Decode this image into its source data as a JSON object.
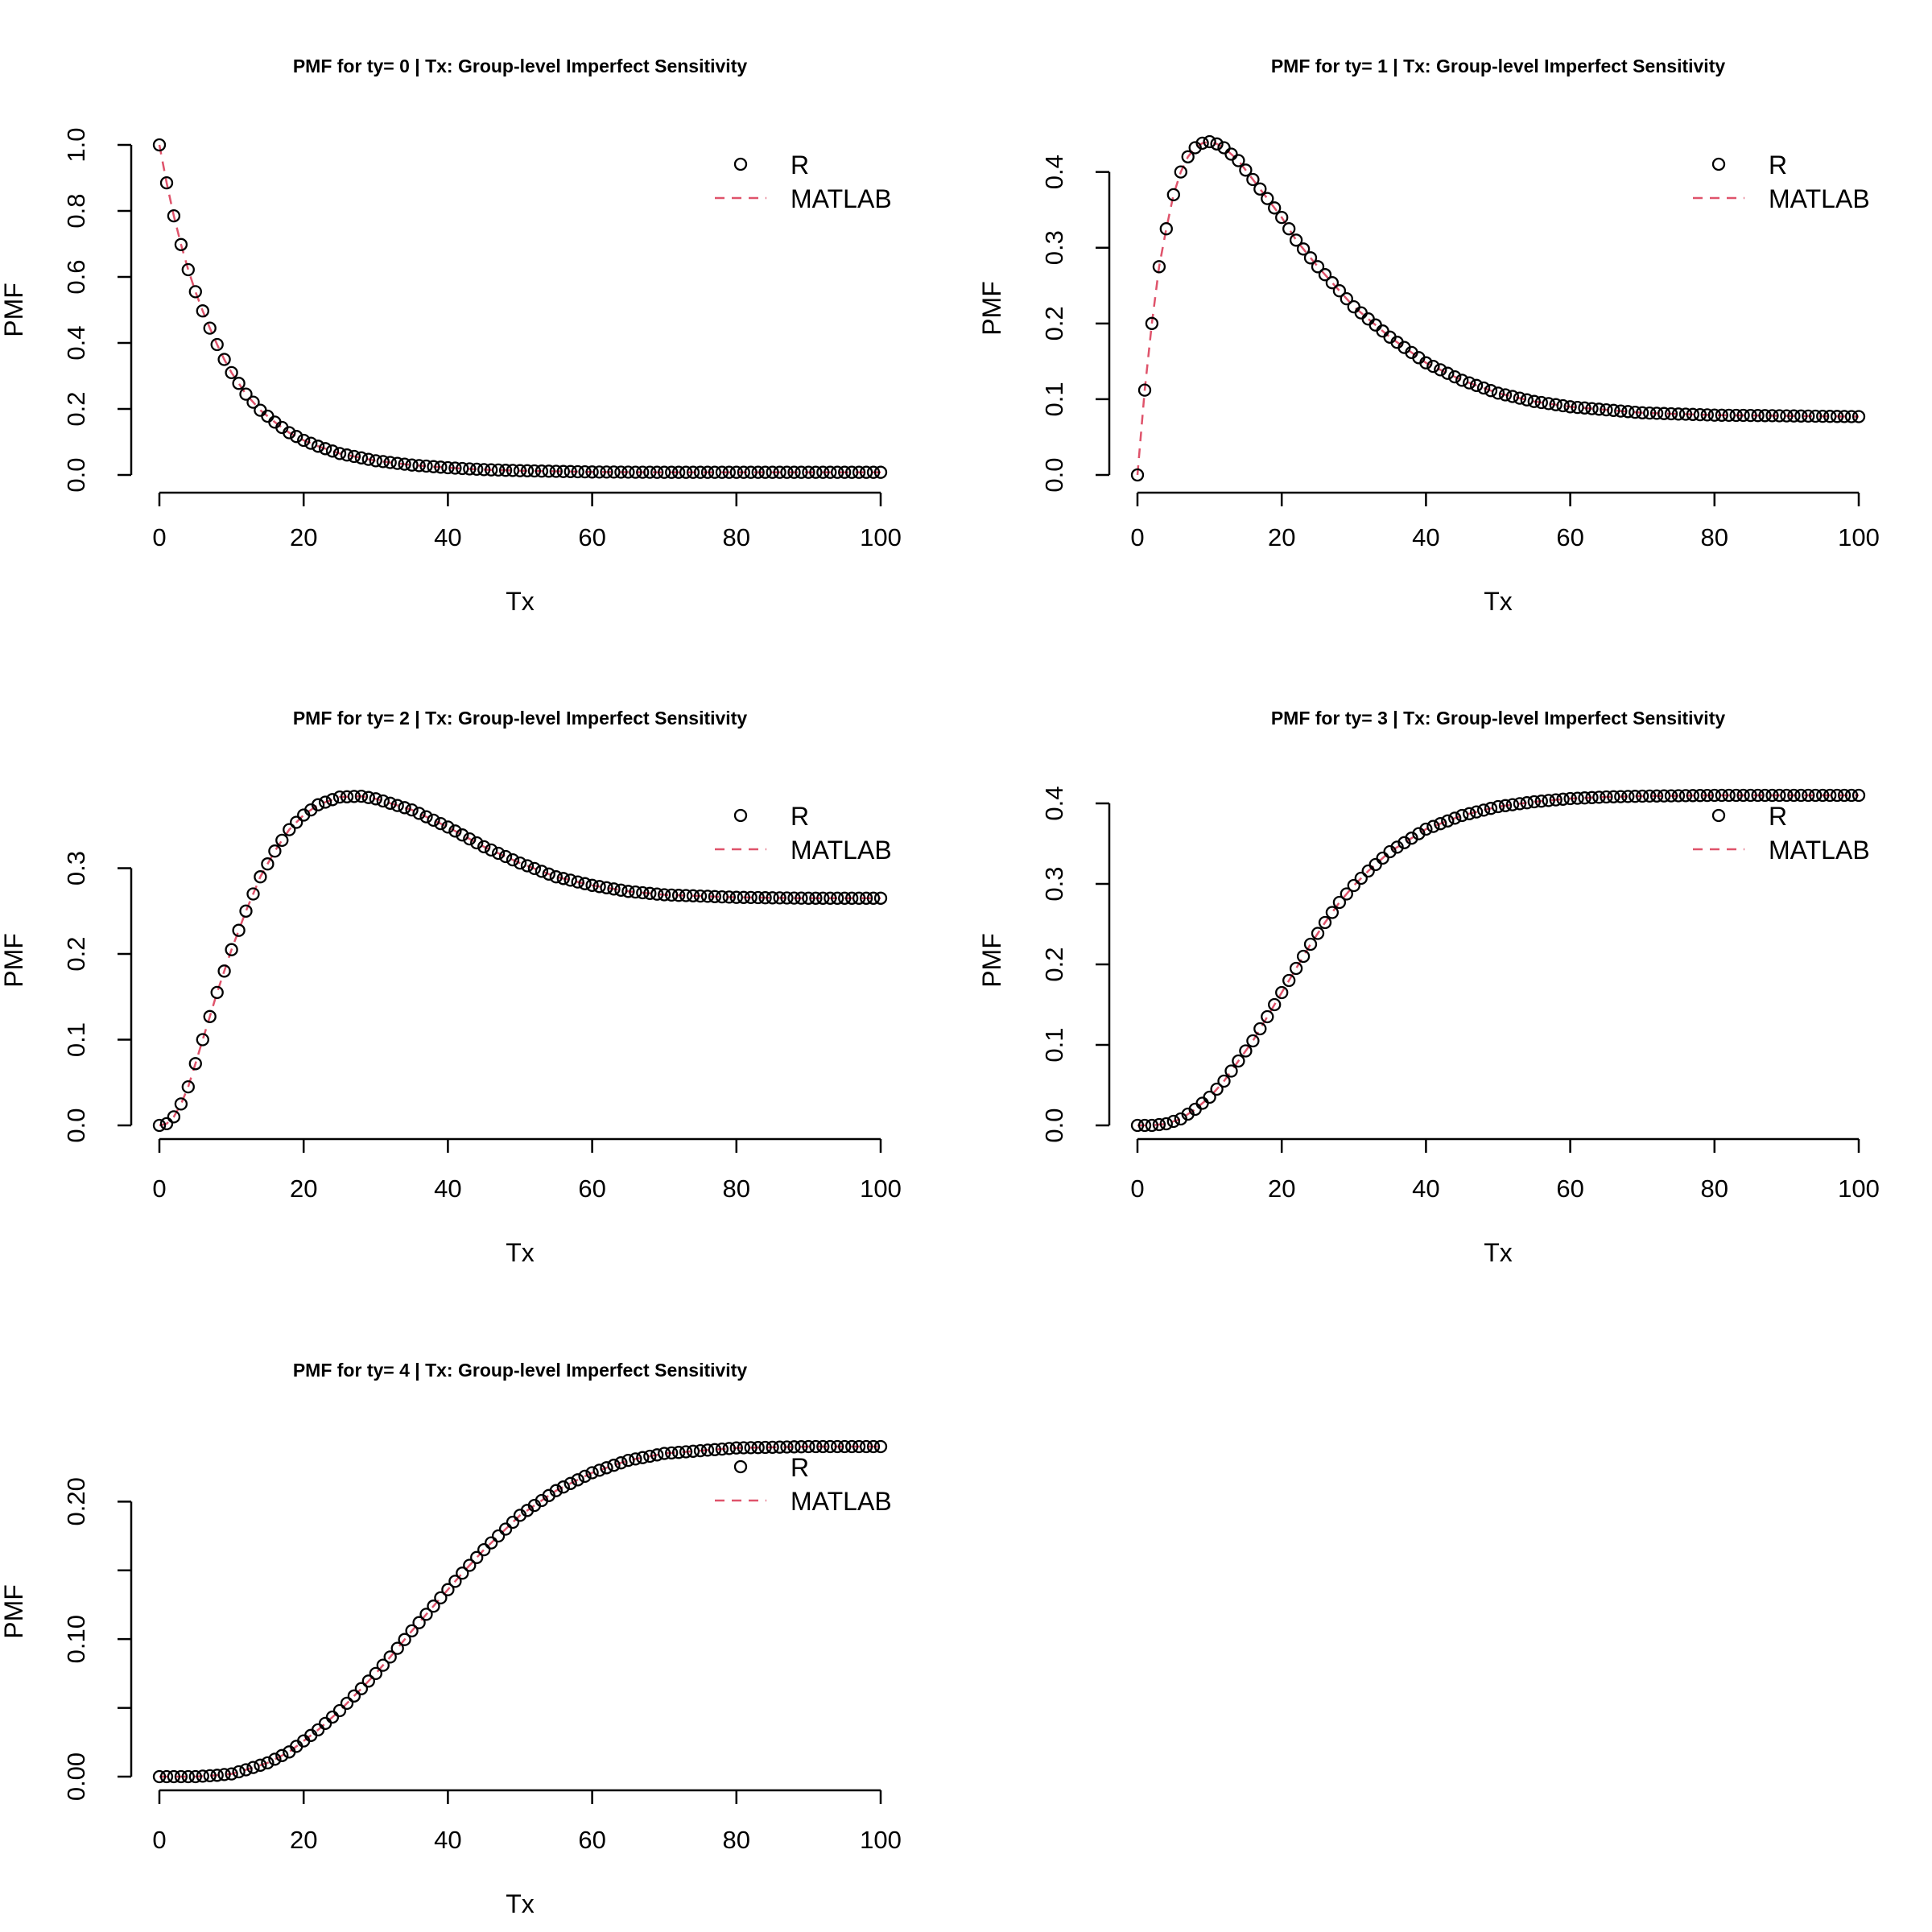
{
  "chart_data": [
    {
      "type": "line",
      "title": "PMF for ty= 0  | Tx: Group-level Imperfect Sensitivity",
      "xlabel": "Tx",
      "ylabel": "PMF",
      "xlim": [
        0,
        100
      ],
      "ylim": [
        0,
        1.0
      ],
      "x_ticks": [
        "0",
        "20",
        "40",
        "60",
        "80",
        "100"
      ],
      "y_ticks": [
        "0.0",
        "0.2",
        "0.4",
        "0.6",
        "0.8",
        "1.0"
      ],
      "legend": [
        "R",
        "MATLAB"
      ],
      "legend_position": "top-right",
      "x": [
        0,
        1,
        2,
        3,
        4,
        5,
        6,
        7,
        8,
        9,
        10,
        12,
        14,
        16,
        18,
        20,
        22,
        25,
        30,
        35,
        40,
        45,
        50,
        60,
        70,
        80,
        90,
        100
      ],
      "series": [
        {
          "name": "R",
          "values": [
            1.0,
            0.885,
            0.785,
            0.698,
            0.622,
            0.555,
            0.497,
            0.445,
            0.395,
            0.35,
            0.31,
            0.245,
            0.196,
            0.16,
            0.128,
            0.105,
            0.087,
            0.065,
            0.043,
            0.03,
            0.022,
            0.016,
            0.013,
            0.009,
            0.008,
            0.008,
            0.008,
            0.008
          ]
        },
        {
          "name": "MATLAB",
          "values": [
            1.0,
            0.885,
            0.785,
            0.698,
            0.622,
            0.555,
            0.497,
            0.445,
            0.395,
            0.35,
            0.31,
            0.245,
            0.196,
            0.16,
            0.128,
            0.105,
            0.087,
            0.065,
            0.043,
            0.03,
            0.022,
            0.016,
            0.013,
            0.009,
            0.008,
            0.008,
            0.008,
            0.008
          ]
        }
      ]
    },
    {
      "type": "line",
      "title": "PMF for ty= 1  | Tx: Group-level Imperfect Sensitivity",
      "xlabel": "Tx",
      "ylabel": "PMF",
      "xlim": [
        0,
        100
      ],
      "ylim": [
        0,
        0.44
      ],
      "x_ticks": [
        "0",
        "20",
        "40",
        "60",
        "80",
        "100"
      ],
      "y_ticks": [
        "0.0",
        "0.1",
        "0.2",
        "0.3",
        "0.4"
      ],
      "legend": [
        "R",
        "MATLAB"
      ],
      "legend_position": "top-right",
      "x": [
        0,
        1,
        2,
        3,
        4,
        5,
        6,
        7,
        8,
        9,
        10,
        11,
        12,
        14,
        16,
        18,
        20,
        22,
        25,
        30,
        35,
        40,
        45,
        50,
        55,
        60,
        70,
        80,
        90,
        100
      ],
      "series": [
        {
          "name": "R",
          "values": [
            0.0,
            0.112,
            0.2,
            0.275,
            0.325,
            0.37,
            0.4,
            0.42,
            0.432,
            0.438,
            0.44,
            0.437,
            0.432,
            0.415,
            0.39,
            0.365,
            0.34,
            0.31,
            0.275,
            0.222,
            0.182,
            0.148,
            0.125,
            0.108,
            0.097,
            0.09,
            0.082,
            0.079,
            0.078,
            0.077
          ]
        },
        {
          "name": "MATLAB",
          "values": [
            0.0,
            0.112,
            0.2,
            0.275,
            0.325,
            0.37,
            0.4,
            0.42,
            0.432,
            0.438,
            0.44,
            0.437,
            0.432,
            0.415,
            0.39,
            0.365,
            0.34,
            0.31,
            0.275,
            0.222,
            0.182,
            0.148,
            0.125,
            0.108,
            0.097,
            0.09,
            0.082,
            0.079,
            0.078,
            0.077
          ]
        }
      ]
    },
    {
      "type": "line",
      "title": "PMF for ty= 2  | Tx: Group-level Imperfect Sensitivity",
      "xlabel": "Tx",
      "ylabel": "PMF",
      "xlim": [
        0,
        100
      ],
      "ylim": [
        0,
        0.385
      ],
      "x_ticks": [
        "0",
        "20",
        "40",
        "60",
        "80",
        "100"
      ],
      "y_ticks": [
        "0.0",
        "0.1",
        "0.2",
        "0.3"
      ],
      "legend": [
        "R",
        "MATLAB"
      ],
      "legend_position": "top-right",
      "x": [
        0,
        1,
        2,
        3,
        4,
        5,
        6,
        7,
        8,
        9,
        10,
        12,
        14,
        16,
        18,
        20,
        22,
        25,
        28,
        30,
        35,
        40,
        45,
        50,
        55,
        60,
        65,
        70,
        80,
        90,
        100
      ],
      "series": [
        {
          "name": "R",
          "values": [
            0.0,
            0.002,
            0.01,
            0.025,
            0.045,
            0.072,
            0.1,
            0.127,
            0.155,
            0.18,
            0.205,
            0.25,
            0.29,
            0.32,
            0.345,
            0.362,
            0.374,
            0.383,
            0.384,
            0.381,
            0.368,
            0.348,
            0.325,
            0.306,
            0.29,
            0.28,
            0.273,
            0.269,
            0.266,
            0.265,
            0.265
          ]
        },
        {
          "name": "MATLAB",
          "values": [
            0.0,
            0.002,
            0.01,
            0.025,
            0.045,
            0.072,
            0.1,
            0.127,
            0.155,
            0.18,
            0.205,
            0.25,
            0.29,
            0.32,
            0.345,
            0.362,
            0.374,
            0.383,
            0.384,
            0.381,
            0.368,
            0.348,
            0.325,
            0.306,
            0.29,
            0.28,
            0.273,
            0.269,
            0.266,
            0.265,
            0.265
          ]
        }
      ]
    },
    {
      "type": "line",
      "title": "PMF for ty= 3  | Tx: Group-level Imperfect Sensitivity",
      "xlabel": "Tx",
      "ylabel": "PMF",
      "xlim": [
        0,
        100
      ],
      "ylim": [
        0,
        0.41
      ],
      "x_ticks": [
        "0",
        "20",
        "40",
        "60",
        "80",
        "100"
      ],
      "y_ticks": [
        "0.0",
        "0.1",
        "0.2",
        "0.3",
        "0.4"
      ],
      "legend": [
        "R",
        "MATLAB"
      ],
      "legend_position": "top-right",
      "x": [
        0,
        2,
        4,
        6,
        8,
        10,
        12,
        14,
        16,
        18,
        20,
        22,
        24,
        26,
        28,
        30,
        32,
        35,
        40,
        45,
        50,
        55,
        60,
        65,
        70,
        80,
        90,
        100
      ],
      "series": [
        {
          "name": "R",
          "values": [
            0.0,
            0.0,
            0.002,
            0.008,
            0.02,
            0.035,
            0.055,
            0.08,
            0.105,
            0.135,
            0.165,
            0.195,
            0.225,
            0.252,
            0.277,
            0.298,
            0.316,
            0.34,
            0.368,
            0.385,
            0.396,
            0.402,
            0.406,
            0.408,
            0.409,
            0.41,
            0.41,
            0.41
          ]
        },
        {
          "name": "MATLAB",
          "values": [
            0.0,
            0.0,
            0.002,
            0.008,
            0.02,
            0.035,
            0.055,
            0.08,
            0.105,
            0.135,
            0.165,
            0.195,
            0.225,
            0.252,
            0.277,
            0.298,
            0.316,
            0.34,
            0.368,
            0.385,
            0.396,
            0.402,
            0.406,
            0.408,
            0.409,
            0.41,
            0.41,
            0.41
          ]
        }
      ]
    },
    {
      "type": "line",
      "title": "PMF for ty= 4  | Tx: Group-level Imperfect Sensitivity",
      "xlabel": "Tx",
      "ylabel": "PMF",
      "xlim": [
        0,
        100
      ],
      "ylim": [
        0,
        0.24
      ],
      "x_ticks": [
        "0",
        "20",
        "40",
        "60",
        "80",
        "100"
      ],
      "y_ticks": [
        "0.00",
        "0.10",
        "0.20"
      ],
      "legend": [
        "R",
        "MATLAB"
      ],
      "legend_position": "top-right",
      "x": [
        0,
        5,
        8,
        10,
        12,
        15,
        18,
        20,
        22,
        25,
        28,
        30,
        32,
        35,
        38,
        40,
        42,
        45,
        48,
        50,
        55,
        60,
        65,
        70,
        75,
        80,
        90,
        100
      ],
      "series": [
        {
          "name": "R",
          "values": [
            0.0,
            0.0,
            0.001,
            0.002,
            0.005,
            0.01,
            0.018,
            0.026,
            0.034,
            0.048,
            0.064,
            0.075,
            0.087,
            0.106,
            0.124,
            0.136,
            0.148,
            0.165,
            0.18,
            0.19,
            0.208,
            0.221,
            0.23,
            0.235,
            0.237,
            0.239,
            0.24,
            0.24
          ]
        },
        {
          "name": "MATLAB",
          "values": [
            0.0,
            0.0,
            0.001,
            0.002,
            0.005,
            0.01,
            0.018,
            0.026,
            0.034,
            0.048,
            0.064,
            0.075,
            0.087,
            0.106,
            0.124,
            0.136,
            0.148,
            0.165,
            0.18,
            0.19,
            0.208,
            0.221,
            0.23,
            0.235,
            0.237,
            0.239,
            0.24,
            0.24
          ]
        }
      ]
    }
  ],
  "colors": {
    "points": "#000000",
    "matlab_line": "#df536b",
    "axis": "#000000"
  }
}
